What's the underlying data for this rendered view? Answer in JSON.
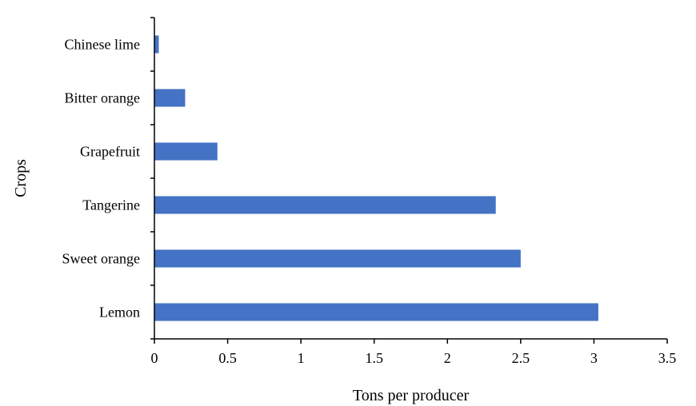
{
  "chart_data": {
    "type": "bar",
    "orientation": "horizontal",
    "categories": [
      "Lemon",
      "Sweet orange",
      "Tangerine",
      "Grapefruit",
      "Bitter orange",
      "Chinese lime"
    ],
    "values": [
      3.03,
      2.5,
      2.33,
      0.43,
      0.21,
      0.03
    ],
    "xlabel": "Tons per producer",
    "ylabel": "Crops",
    "xlim": [
      0,
      3.5
    ],
    "x_ticks": [
      "0",
      "0.5",
      "1",
      "1.5",
      "2",
      "2.5",
      "3",
      "3.5"
    ],
    "bar_color": "#4472c4",
    "grid": false,
    "legend": "none"
  }
}
